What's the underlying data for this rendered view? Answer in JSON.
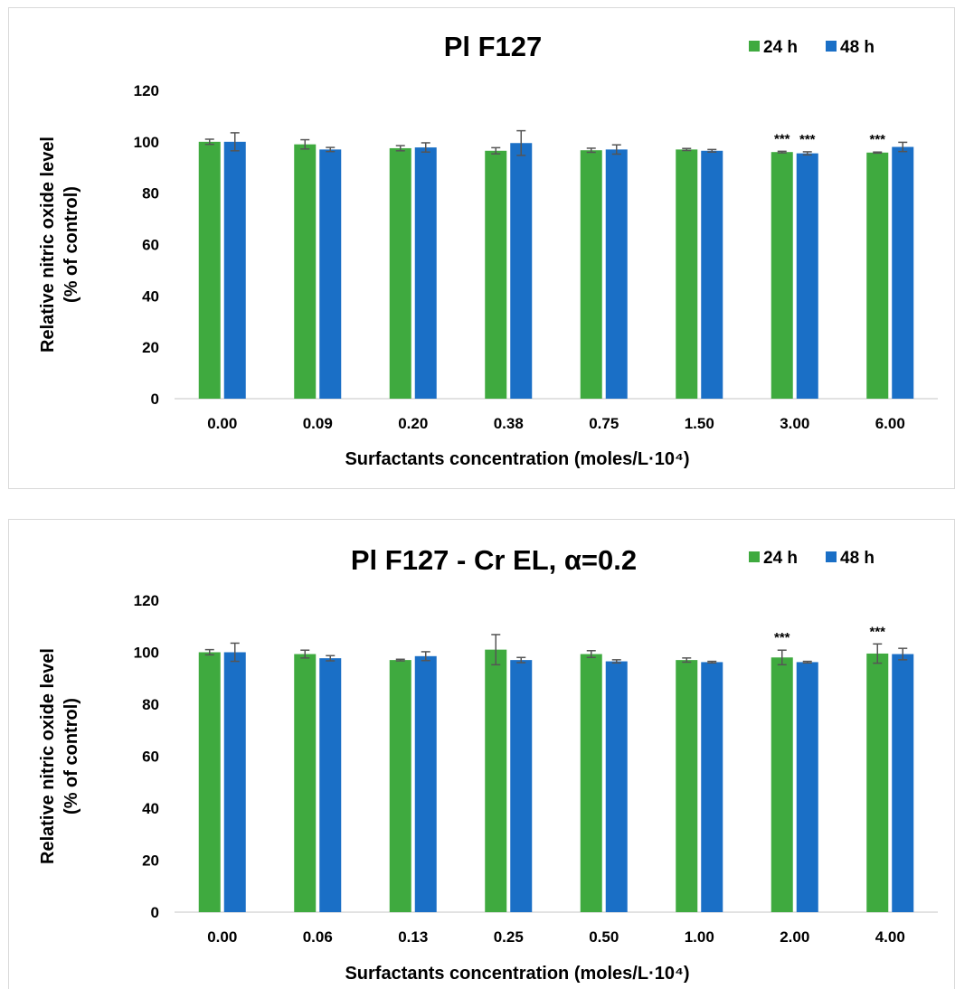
{
  "chart_data": [
    {
      "type": "bar",
      "title": "Pl F127",
      "xlabel": "Surfactants concentration (moles/L·10⁴)",
      "ylabel": [
        "Relative nitric oxide level",
        "(% of control)"
      ],
      "ylim": [
        0,
        120
      ],
      "yticks": [
        "0",
        "20",
        "40",
        "60",
        "80",
        "100",
        "120"
      ],
      "categories": [
        "0.00",
        "0.09",
        "0.20",
        "0.38",
        "0.75",
        "1.50",
        "3.00",
        "6.00"
      ],
      "series": [
        {
          "name": "24 h",
          "color": "#3faa3f",
          "values": [
            100,
            99,
            97.5,
            96.5,
            96.7,
            97,
            96,
            95.8
          ],
          "errors": [
            1,
            1.8,
            1,
            1.2,
            0.8,
            0.4,
            0.3,
            0.2
          ],
          "annotations": [
            "",
            "",
            "",
            "",
            "",
            "",
            "***",
            "***"
          ]
        },
        {
          "name": "48 h",
          "color": "#1a6fc6",
          "values": [
            100,
            97,
            97.8,
            99.5,
            97,
            96.5,
            95.5,
            98
          ],
          "errors": [
            3.5,
            0.8,
            1.8,
            4.8,
            1.8,
            0.5,
            0.6,
            1.8
          ],
          "annotations": [
            "",
            "",
            "",
            "",
            "",
            "",
            "***",
            ""
          ]
        }
      ],
      "grid": false,
      "legend_position": "top-right"
    },
    {
      "type": "bar",
      "title": "Pl F127 - Cr EL, α=0.2",
      "xlabel": "Surfactants concentration (moles/L·10⁴)",
      "ylabel": [
        "Relative nitric oxide level",
        "(% of control)"
      ],
      "ylim": [
        0,
        120
      ],
      "yticks": [
        "0",
        "20",
        "40",
        "60",
        "80",
        "100",
        "120"
      ],
      "categories": [
        "0.00",
        "0.06",
        "0.13",
        "0.25",
        "0.50",
        "1.00",
        "2.00",
        "4.00"
      ],
      "series": [
        {
          "name": "24 h",
          "color": "#3faa3f",
          "values": [
            100,
            99.3,
            97,
            101,
            99.3,
            97,
            98,
            99.5
          ],
          "errors": [
            1,
            1.5,
            0.3,
            5.8,
            1.3,
            0.8,
            2.8,
            3.7
          ],
          "annotations": [
            "",
            "",
            "",
            "",
            "",
            "",
            "***",
            "***"
          ]
        },
        {
          "name": "48 h",
          "color": "#1a6fc6",
          "values": [
            100,
            97.7,
            98.5,
            97,
            96.5,
            96.2,
            96.2,
            99.3
          ],
          "errors": [
            3.5,
            1,
            1.7,
            1,
            0.6,
            0.3,
            0.3,
            2.2
          ],
          "annotations": [
            "",
            "",
            "",
            "",
            "",
            "",
            "",
            ""
          ]
        }
      ],
      "grid": false,
      "legend_position": "top-right"
    }
  ]
}
